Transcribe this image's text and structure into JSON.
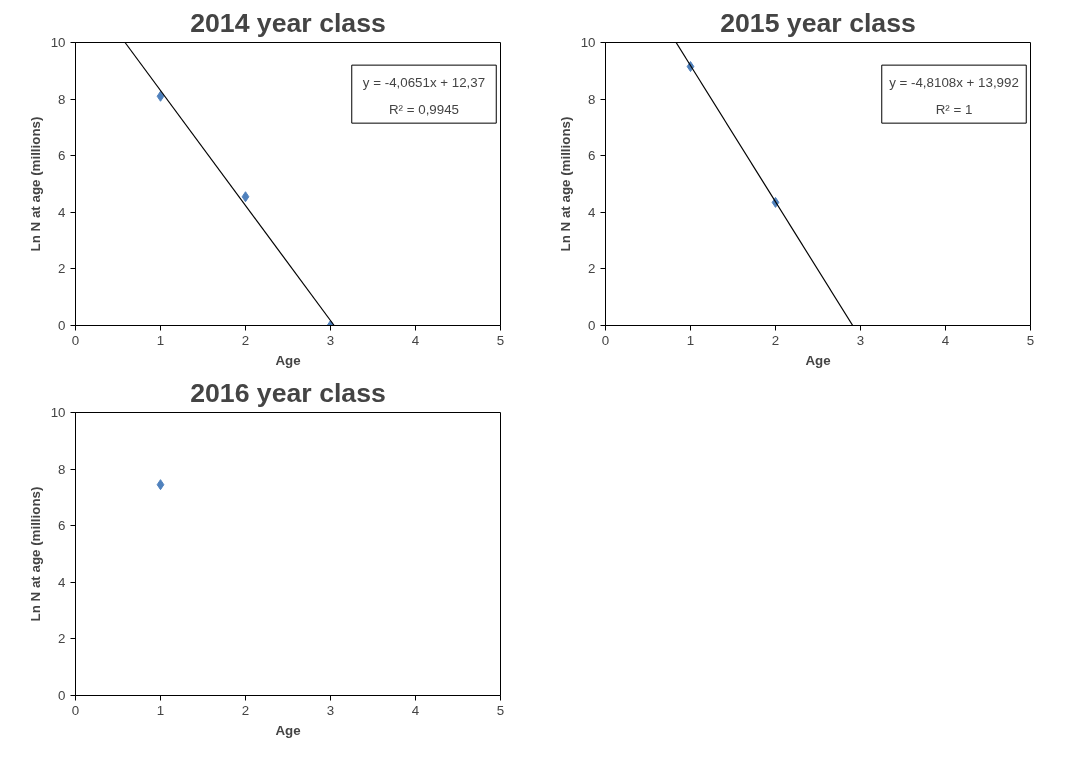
{
  "chart_data": [
    {
      "type": "scatter",
      "title": "2014 year class",
      "xlabel": "Age",
      "ylabel": "Ln N at age (millions)",
      "xlim": [
        0,
        5
      ],
      "ylim": [
        0,
        10
      ],
      "xticks": [
        0,
        1,
        2,
        3,
        4,
        5
      ],
      "yticks": [
        0,
        2,
        4,
        6,
        8,
        10
      ],
      "grid": false,
      "annotations": [
        "y = -4,0651x + 12,37",
        "R² = 0,9945"
      ],
      "series": [
        {
          "color": "#4f81bd",
          "marker": "diamond",
          "x": [
            1,
            2,
            3
          ],
          "values": [
            8.1,
            4.55,
            0
          ]
        },
        {
          "type": "line",
          "color": "#000000",
          "marker": "none",
          "x": [
            0.583,
            3.043
          ],
          "values": [
            10,
            0
          ]
        }
      ]
    },
    {
      "type": "scatter",
      "title": "2015 year class",
      "xlabel": "Age",
      "ylabel": "Ln N at age (millions)",
      "xlim": [
        0,
        5
      ],
      "ylim": [
        0,
        10
      ],
      "xticks": [
        0,
        1,
        2,
        3,
        4,
        5
      ],
      "yticks": [
        0,
        2,
        4,
        6,
        8,
        10
      ],
      "grid": false,
      "annotations": [
        "y = -4,8108x + 13,992",
        "R² = 1"
      ],
      "series": [
        {
          "color": "#4f81bd",
          "marker": "diamond",
          "x": [
            1,
            2
          ],
          "values": [
            9.15,
            4.35
          ]
        },
        {
          "type": "line",
          "color": "#000000",
          "marker": "none",
          "x": [
            0.831,
            2.908
          ],
          "values": [
            10,
            0
          ]
        }
      ]
    },
    {
      "type": "scatter",
      "title": "2016 year class",
      "xlabel": "Age",
      "ylabel": "Ln N at age (millions)",
      "xlim": [
        0,
        5
      ],
      "ylim": [
        0,
        10
      ],
      "xticks": [
        0,
        1,
        2,
        3,
        4,
        5
      ],
      "yticks": [
        0,
        2,
        4,
        6,
        8,
        10
      ],
      "grid": false,
      "series": [
        {
          "color": "#4f81bd",
          "marker": "diamond",
          "x": [
            1
          ],
          "values": [
            7.45
          ]
        }
      ]
    }
  ]
}
